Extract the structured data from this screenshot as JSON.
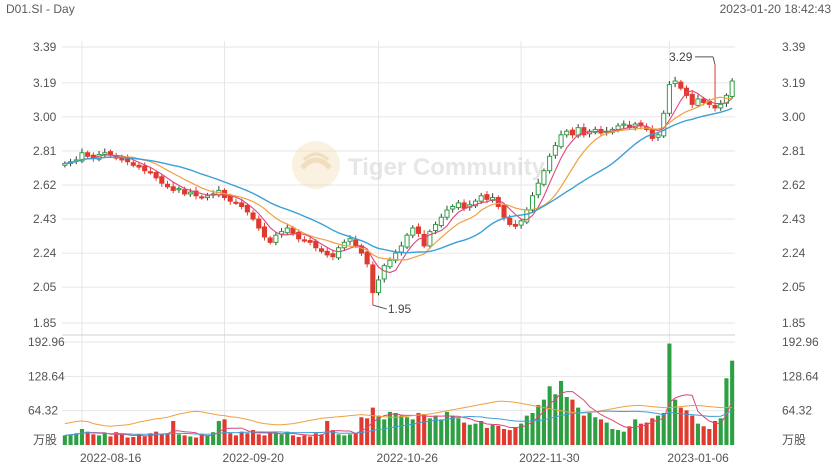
{
  "header": {
    "symbol_label": "D01.SI - Day",
    "timestamp": "2023-01-20 18:42:43"
  },
  "watermark": {
    "text": "Tiger Community",
    "icon": "tiger-paw-logo-icon"
  },
  "colors": {
    "up": "#2ea043",
    "down": "#e03a2f",
    "ma_fast": "#e0447a",
    "ma_mid": "#f0a040",
    "ma_slow": "#3aa0d8",
    "grid": "#e6e6e6",
    "axis_text": "#555555"
  },
  "chart_data": {
    "type": "candlestick",
    "price_axis": {
      "ticks": [
        "3.39",
        "3.19",
        "3.00",
        "2.81",
        "2.62",
        "2.43",
        "2.24",
        "2.05",
        "1.85"
      ],
      "range": [
        1.85,
        3.39
      ]
    },
    "volume_axis": {
      "ticks": [
        "192.96",
        "128.64",
        "64.32"
      ],
      "range": [
        0,
        192.96
      ],
      "unit_label": "万股"
    },
    "x_axis": {
      "labels": [
        "2022-08-16",
        "2022-09-20",
        "2022-10-26",
        "2022-11-30",
        "2023-01-06"
      ],
      "label_index": [
        3,
        28,
        55,
        80,
        106
      ]
    },
    "annotations": [
      {
        "text": "1.95",
        "index": 54,
        "value": 1.95,
        "kind": "low"
      },
      {
        "text": "3.29",
        "index": 114,
        "value": 3.29,
        "kind": "high"
      }
    ],
    "closes": [
      2.74,
      2.75,
      2.76,
      2.8,
      2.78,
      2.77,
      2.79,
      2.8,
      2.79,
      2.77,
      2.76,
      2.75,
      2.73,
      2.72,
      2.7,
      2.69,
      2.66,
      2.63,
      2.61,
      2.59,
      2.6,
      2.57,
      2.58,
      2.56,
      2.55,
      2.56,
      2.57,
      2.59,
      2.55,
      2.53,
      2.52,
      2.5,
      2.47,
      2.43,
      2.38,
      2.33,
      2.3,
      2.34,
      2.36,
      2.38,
      2.35,
      2.32,
      2.31,
      2.3,
      2.27,
      2.25,
      2.23,
      2.22,
      2.27,
      2.3,
      2.32,
      2.28,
      2.24,
      2.18,
      2.02,
      2.09,
      2.17,
      2.2,
      2.24,
      2.28,
      2.34,
      2.38,
      2.35,
      2.28,
      2.36,
      2.4,
      2.44,
      2.48,
      2.5,
      2.52,
      2.49,
      2.51,
      2.53,
      2.56,
      2.54,
      2.55,
      2.5,
      2.44,
      2.4,
      2.39,
      2.42,
      2.48,
      2.56,
      2.63,
      2.7,
      2.78,
      2.84,
      2.9,
      2.92,
      2.9,
      2.94,
      2.9,
      2.92,
      2.93,
      2.91,
      2.92,
      2.93,
      2.95,
      2.96,
      2.94,
      2.96,
      2.95,
      2.93,
      2.88,
      2.9,
      3.02,
      3.18,
      3.2,
      3.16,
      3.12,
      3.07,
      3.1,
      3.08,
      3.07,
      3.05,
      3.07,
      3.12,
      3.2
    ],
    "volumes": [
      18,
      20,
      22,
      30,
      25,
      20,
      18,
      22,
      16,
      24,
      20,
      14,
      15,
      20,
      16,
      22,
      25,
      20,
      22,
      45,
      20,
      18,
      16,
      14,
      20,
      18,
      24,
      45,
      48,
      22,
      18,
      25,
      22,
      28,
      20,
      18,
      24,
      22,
      20,
      25,
      18,
      15,
      18,
      16,
      22,
      20,
      45,
      28,
      20,
      18,
      20,
      22,
      52,
      50,
      70,
      55,
      48,
      62,
      60,
      55,
      52,
      48,
      60,
      58,
      50,
      55,
      48,
      62,
      55,
      50,
      42,
      38,
      40,
      45,
      32,
      38,
      36,
      30,
      28,
      32,
      40,
      55,
      60,
      75,
      85,
      110,
      95,
      120,
      90,
      85,
      70,
      55,
      60,
      52,
      48,
      42,
      30,
      28,
      25,
      35,
      48,
      40,
      42,
      50,
      55,
      60,
      190,
      85,
      70,
      65,
      55,
      40,
      35,
      30,
      45,
      50,
      125,
      158
    ],
    "volume_ma_mid": [
      40,
      42,
      44,
      45,
      44,
      40,
      38,
      36,
      35,
      36,
      37,
      38,
      40,
      43,
      45,
      47,
      49,
      50,
      52,
      55,
      58,
      60,
      62,
      63,
      62,
      60,
      58,
      56,
      55,
      53,
      52,
      50,
      48,
      45,
      42,
      40,
      39,
      38,
      38,
      39,
      40,
      42,
      44,
      46,
      48,
      50,
      51,
      52,
      53,
      54,
      55,
      56,
      57,
      56,
      55,
      54,
      53,
      52,
      52,
      53,
      54,
      55,
      56,
      57,
      58,
      60,
      62,
      64,
      66,
      68,
      70,
      72,
      74,
      76,
      78,
      80,
      82,
      82,
      81,
      80,
      78,
      76,
      74,
      72,
      70,
      68,
      66,
      64,
      62,
      61,
      60,
      60,
      61,
      62,
      64,
      66,
      68,
      70,
      72,
      73,
      74,
      74,
      73,
      72,
      71,
      70,
      70,
      71,
      72,
      73,
      74,
      74,
      73,
      72,
      71,
      70,
      70,
      70
    ]
  }
}
